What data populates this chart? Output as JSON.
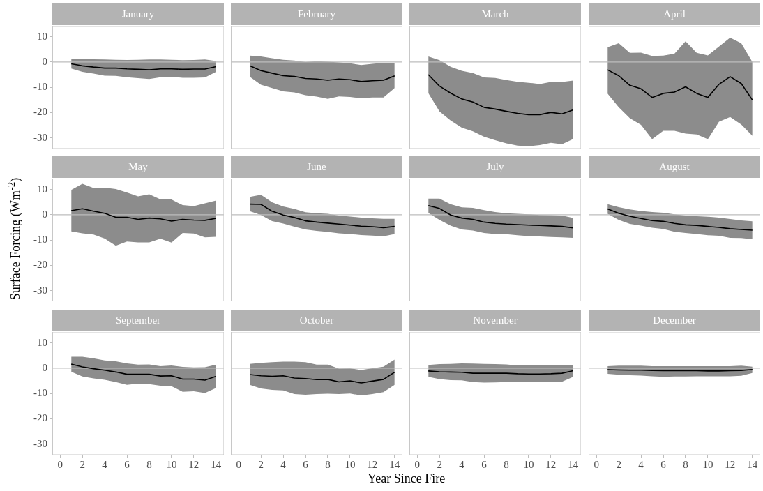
{
  "chart_data": [
    {
      "type": "line",
      "title": "January",
      "x": [
        1,
        2,
        3,
        4,
        5,
        6,
        7,
        8,
        9,
        10,
        11,
        12,
        13,
        14
      ],
      "xlim": [
        -0.7,
        14.7
      ],
      "ylim": [
        -34.2,
        14.3
      ],
      "xticks": [
        0,
        2,
        4,
        6,
        8,
        10,
        12,
        14
      ],
      "yticks": [
        -30,
        -20,
        -10,
        0,
        10
      ],
      "tick_labels": "y",
      "ref_lines": [
        {
          "axis": "y",
          "value": 0,
          "color": "#bdbdbd"
        }
      ],
      "series": [
        {
          "color": "#000000",
          "values": [
            -0.7,
            -1.5,
            -2,
            -2.4,
            -2.4,
            -2.7,
            -2.9,
            -3.1,
            -2.7,
            -2.7,
            -2.9,
            -2.8,
            -2.8,
            -1.8
          ],
          "lower": [
            -2.6,
            -3.9,
            -4.6,
            -5.4,
            -5.5,
            -6,
            -6.4,
            -6.7,
            -6,
            -5.9,
            -6.2,
            -6.2,
            -6.1,
            -3.9
          ],
          "upper": [
            1.2,
            1.2,
            1.1,
            1,
            0.9,
            0.8,
            0.9,
            1,
            1,
            0.9,
            0.7,
            0.8,
            1,
            0.4
          ]
        }
      ]
    },
    {
      "type": "line",
      "title": "February",
      "x": [
        1,
        2,
        3,
        4,
        5,
        6,
        7,
        8,
        9,
        10,
        11,
        12,
        13,
        14
      ],
      "xlim": [
        -0.7,
        14.7
      ],
      "ylim": [
        -34.2,
        14.3
      ],
      "xticks": [
        0,
        2,
        4,
        6,
        8,
        10,
        12,
        14
      ],
      "yticks": [
        -30,
        -20,
        -10,
        0,
        10
      ],
      "tick_labels": false,
      "ref_lines": [
        {
          "axis": "y",
          "value": 0,
          "color": "#bdbdbd"
        }
      ],
      "series": [
        {
          "color": "#000000",
          "values": [
            -1.5,
            -3.4,
            -4.4,
            -5.4,
            -5.7,
            -6.5,
            -6.7,
            -7.2,
            -6.7,
            -7,
            -7.7,
            -7.4,
            -7.2,
            -5.5
          ],
          "lower": [
            -5.8,
            -9,
            -10.3,
            -11.6,
            -12,
            -13.1,
            -13.7,
            -14.6,
            -13.6,
            -13.8,
            -14.3,
            -14,
            -14,
            -10.3
          ],
          "upper": [
            2.5,
            2.2,
            1.5,
            0.9,
            0.6,
            0,
            0.3,
            0.1,
            -0.2,
            -0.5,
            -1.2,
            -0.7,
            -0.3,
            -0.5
          ]
        }
      ]
    },
    {
      "type": "line",
      "title": "March",
      "x": [
        1,
        2,
        3,
        4,
        5,
        6,
        7,
        8,
        9,
        10,
        11,
        12,
        13,
        14
      ],
      "xlim": [
        -0.7,
        14.7
      ],
      "ylim": [
        -34.2,
        14.3
      ],
      "xticks": [
        0,
        2,
        4,
        6,
        8,
        10,
        12,
        14
      ],
      "yticks": [
        -30,
        -20,
        -10,
        0,
        10
      ],
      "tick_labels": false,
      "ref_lines": [
        {
          "axis": "y",
          "value": 0,
          "color": "#bdbdbd"
        }
      ],
      "series": [
        {
          "color": "#000000",
          "values": [
            -5,
            -9.5,
            -12.3,
            -14.6,
            -15.8,
            -17.9,
            -18.6,
            -19.5,
            -20.3,
            -20.8,
            -20.8,
            -19.9,
            -20.5,
            -18.9
          ],
          "lower": [
            -12.3,
            -19.5,
            -23.1,
            -25.9,
            -27.4,
            -29.5,
            -30.9,
            -32.1,
            -33,
            -33.3,
            -32.8,
            -31.9,
            -32.5,
            -30.4
          ],
          "upper": [
            2.2,
            0.7,
            -1.9,
            -3.5,
            -4.4,
            -6.1,
            -6.3,
            -7.1,
            -7.8,
            -8.2,
            -8.7,
            -7.9,
            -7.9,
            -7.3
          ]
        }
      ]
    },
    {
      "type": "line",
      "title": "April",
      "x": [
        1,
        2,
        3,
        4,
        5,
        6,
        7,
        8,
        9,
        10,
        11,
        12,
        13,
        14
      ],
      "xlim": [
        -0.7,
        14.7
      ],
      "ylim": [
        -34.2,
        14.3
      ],
      "xticks": [
        0,
        2,
        4,
        6,
        8,
        10,
        12,
        14
      ],
      "yticks": [
        -30,
        -20,
        -10,
        0,
        10
      ],
      "tick_labels": false,
      "ref_lines": [
        {
          "axis": "y",
          "value": 0,
          "color": "#bdbdbd"
        }
      ],
      "series": [
        {
          "color": "#000000",
          "values": [
            -3.1,
            -5.4,
            -9.2,
            -10.6,
            -14,
            -12.4,
            -11.9,
            -9.8,
            -12.4,
            -14,
            -8.8,
            -5.8,
            -8.5,
            -15
          ],
          "lower": [
            -12.5,
            -17.9,
            -22.2,
            -24.8,
            -30.5,
            -27.2,
            -27.2,
            -28.3,
            -28.6,
            -30.5,
            -23.6,
            -21.7,
            -24.7,
            -29.2
          ],
          "upper": [
            5.8,
            7.4,
            3.6,
            3.7,
            2.4,
            2.5,
            3.3,
            8.2,
            3.6,
            2.6,
            6.1,
            9.6,
            7.4,
            0
          ]
        }
      ]
    },
    {
      "type": "line",
      "title": "May",
      "ylabel": "Surface Forcing (Wm$^{-2}$)",
      "x": [
        1,
        2,
        3,
        4,
        5,
        6,
        7,
        8,
        9,
        10,
        11,
        12,
        13,
        14
      ],
      "xlim": [
        -0.7,
        14.7
      ],
      "ylim": [
        -34.2,
        14.3
      ],
      "xticks": [
        0,
        2,
        4,
        6,
        8,
        10,
        12,
        14
      ],
      "yticks": [
        -30,
        -20,
        -10,
        0,
        10
      ],
      "tick_labels": "y",
      "ref_lines": [
        {
          "axis": "y",
          "value": 0,
          "color": "#bdbdbd"
        }
      ],
      "series": [
        {
          "color": "#000000",
          "values": [
            1.6,
            2.4,
            1.4,
            0.6,
            -1,
            -1,
            -1.8,
            -1.3,
            -1.6,
            -2.5,
            -1.8,
            -2.1,
            -2.2,
            -1.4
          ],
          "lower": [
            -6.6,
            -7.3,
            -7.8,
            -9.4,
            -12.2,
            -10.6,
            -10.9,
            -10.9,
            -9.5,
            -11,
            -7.2,
            -7.4,
            -8.9,
            -8.7
          ],
          "upper": [
            9.8,
            12.2,
            10.6,
            10.7,
            10.2,
            8.8,
            7.3,
            8.1,
            6.1,
            6,
            3.8,
            3.4,
            4.5,
            5.6
          ]
        }
      ]
    },
    {
      "type": "line",
      "title": "June",
      "x": [
        1,
        2,
        3,
        4,
        5,
        6,
        7,
        8,
        9,
        10,
        11,
        12,
        13,
        14
      ],
      "xlim": [
        -0.7,
        14.7
      ],
      "ylim": [
        -34.2,
        14.3
      ],
      "xticks": [
        0,
        2,
        4,
        6,
        8,
        10,
        12,
        14
      ],
      "yticks": [
        -30,
        -20,
        -10,
        0,
        10
      ],
      "tick_labels": false,
      "ref_lines": [
        {
          "axis": "y",
          "value": 0,
          "color": "#bdbdbd"
        }
      ],
      "series": [
        {
          "color": "#000000",
          "values": [
            4.2,
            4.1,
            1.4,
            -0.1,
            -1.1,
            -2.4,
            -2.9,
            -3.3,
            -3.7,
            -4.1,
            -4.5,
            -4.7,
            -5.1,
            -4.6
          ],
          "lower": [
            1.4,
            -0.1,
            -2.5,
            -3.5,
            -4.7,
            -5.8,
            -6.4,
            -6.8,
            -7.3,
            -7.6,
            -8,
            -8.2,
            -8.5,
            -7.6
          ],
          "upper": [
            7.1,
            7.9,
            4.9,
            3.3,
            2.3,
            1,
            0.6,
            0.4,
            -0.3,
            -0.7,
            -1.1,
            -1.4,
            -1.6,
            -1.6
          ]
        }
      ]
    },
    {
      "type": "line",
      "title": "July",
      "x": [
        1,
        2,
        3,
        4,
        5,
        6,
        7,
        8,
        9,
        10,
        11,
        12,
        13,
        14
      ],
      "xlim": [
        -0.7,
        14.7
      ],
      "ylim": [
        -34.2,
        14.3
      ],
      "xticks": [
        0,
        2,
        4,
        6,
        8,
        10,
        12,
        14
      ],
      "yticks": [
        -30,
        -20,
        -10,
        0,
        10
      ],
      "tick_labels": false,
      "ref_lines": [
        {
          "axis": "y",
          "value": 0,
          "color": "#bdbdbd"
        }
      ],
      "series": [
        {
          "color": "#000000",
          "values": [
            3.6,
            2.5,
            -0.1,
            -1.3,
            -1.8,
            -2.9,
            -3.4,
            -3.7,
            -3.9,
            -4.1,
            -4.2,
            -4.4,
            -4.6,
            -5.2
          ],
          "lower": [
            0.7,
            -2,
            -4.3,
            -5.8,
            -6.2,
            -7.2,
            -7.6,
            -7.7,
            -8.1,
            -8.4,
            -8.6,
            -8.8,
            -8.9,
            -9.1
          ],
          "upper": [
            6.4,
            6.4,
            4.2,
            2.9,
            2.7,
            1.8,
            1.1,
            0.6,
            0.4,
            0.2,
            -0.1,
            -0.2,
            -0.3,
            -1.3
          ]
        }
      ]
    },
    {
      "type": "line",
      "title": "August",
      "x": [
        1,
        2,
        3,
        4,
        5,
        6,
        7,
        8,
        9,
        10,
        11,
        12,
        13,
        14
      ],
      "xlim": [
        -0.7,
        14.7
      ],
      "ylim": [
        -34.2,
        14.3
      ],
      "xticks": [
        0,
        2,
        4,
        6,
        8,
        10,
        12,
        14
      ],
      "yticks": [
        -30,
        -20,
        -10,
        0,
        10
      ],
      "tick_labels": false,
      "ref_lines": [
        {
          "axis": "y",
          "value": 0,
          "color": "#bdbdbd"
        }
      ],
      "series": [
        {
          "color": "#000000",
          "values": [
            2.3,
            0.6,
            -0.6,
            -1.5,
            -2.3,
            -2.6,
            -3.4,
            -4,
            -4.2,
            -4.6,
            -5,
            -5.5,
            -5.8,
            -6.1
          ],
          "lower": [
            0.4,
            -2,
            -3.6,
            -4.3,
            -5.1,
            -5.6,
            -6.7,
            -7.2,
            -7.6,
            -8.1,
            -8.3,
            -9.1,
            -9.2,
            -9.7
          ],
          "upper": [
            4.2,
            3,
            2.1,
            1.5,
            1.1,
            0.8,
            0.2,
            -0.3,
            -0.6,
            -0.8,
            -1.1,
            -1.7,
            -2.2,
            -2.6
          ]
        }
      ]
    },
    {
      "type": "line",
      "title": "September",
      "x": [
        1,
        2,
        3,
        4,
        5,
        6,
        7,
        8,
        9,
        10,
        11,
        12,
        13,
        14
      ],
      "xlim": [
        -0.7,
        14.7
      ],
      "ylim": [
        -34.2,
        14.3
      ],
      "xticks": [
        0,
        2,
        4,
        6,
        8,
        10,
        12,
        14
      ],
      "yticks": [
        -30,
        -20,
        -10,
        0,
        10
      ],
      "ref_lines": [
        {
          "axis": "y",
          "value": 0,
          "color": "#bdbdbd"
        }
      ],
      "series": [
        {
          "color": "#000000",
          "values": [
            1.6,
            0.5,
            -0.2,
            -0.8,
            -1.5,
            -2.4,
            -2.4,
            -2.4,
            -3.1,
            -3,
            -4.3,
            -4.3,
            -4.7,
            -3.2
          ],
          "lower": [
            -1.4,
            -3.3,
            -4,
            -4.6,
            -5.5,
            -6.6,
            -6.1,
            -6.3,
            -6.9,
            -7.1,
            -9.3,
            -9.1,
            -9.8,
            -7.8
          ],
          "upper": [
            4.5,
            4.5,
            3.9,
            3.1,
            2.7,
            1.9,
            1.4,
            1.5,
            0.8,
            1.1,
            0.5,
            0.3,
            0.4,
            1.4
          ]
        }
      ]
    },
    {
      "type": "line",
      "title": "October",
      "xlabel": "Year Since Fire",
      "x": [
        1,
        2,
        3,
        4,
        5,
        6,
        7,
        8,
        9,
        10,
        11,
        12,
        13,
        14
      ],
      "xlim": [
        -0.7,
        14.7
      ],
      "ylim": [
        -34.2,
        14.3
      ],
      "xticks": [
        0,
        2,
        4,
        6,
        8,
        10,
        12,
        14
      ],
      "yticks": [
        -30,
        -20,
        -10,
        0,
        10
      ],
      "tick_labels": "x",
      "ref_lines": [
        {
          "axis": "y",
          "value": 0,
          "color": "#bdbdbd"
        }
      ],
      "series": [
        {
          "color": "#000000",
          "values": [
            -2.5,
            -3,
            -3.2,
            -3,
            -3.9,
            -4.1,
            -4.5,
            -4.4,
            -5.4,
            -5,
            -5.8,
            -5.1,
            -4.4,
            -1.6
          ],
          "lower": [
            -6.6,
            -8,
            -8.6,
            -8.8,
            -10.2,
            -10.5,
            -10.2,
            -10.1,
            -10.2,
            -10,
            -10.8,
            -10.2,
            -9.5,
            -6.6
          ],
          "upper": [
            1.7,
            2.1,
            2.4,
            2.6,
            2.6,
            2.4,
            1.4,
            1.4,
            -0.2,
            -0.1,
            -0.7,
            0,
            0.6,
            3.4
          ]
        }
      ]
    },
    {
      "type": "line",
      "title": "November",
      "x": [
        1,
        2,
        3,
        4,
        5,
        6,
        7,
        8,
        9,
        10,
        11,
        12,
        13,
        14
      ],
      "xlim": [
        -0.7,
        14.7
      ],
      "ylim": [
        -34.2,
        14.3
      ],
      "xticks": [
        0,
        2,
        4,
        6,
        8,
        10,
        12,
        14
      ],
      "yticks": [
        -30,
        -20,
        -10,
        0,
        10
      ],
      "tick_labels": "x",
      "ref_lines": [
        {
          "axis": "y",
          "value": 0,
          "color": "#bdbdbd"
        }
      ],
      "series": [
        {
          "color": "#000000",
          "values": [
            -1.1,
            -1.4,
            -1.5,
            -1.6,
            -2,
            -2,
            -2,
            -2,
            -2.2,
            -2.3,
            -2.3,
            -2.2,
            -2,
            -1
          ],
          "lower": [
            -3.4,
            -4.3,
            -4.7,
            -4.8,
            -5.5,
            -5.7,
            -5.6,
            -5.5,
            -5.3,
            -5.5,
            -5.5,
            -5.4,
            -5.3,
            -3.4
          ],
          "upper": [
            1.3,
            1.6,
            1.7,
            1.9,
            1.8,
            1.7,
            1.6,
            1.5,
            1.1,
            1.1,
            1.2,
            1.3,
            1.3,
            1.1
          ]
        }
      ]
    },
    {
      "type": "line",
      "title": "December",
      "x": [
        1,
        2,
        3,
        4,
        5,
        6,
        7,
        8,
        9,
        10,
        11,
        12,
        13,
        14
      ],
      "xlim": [
        -0.7,
        14.7
      ],
      "ylim": [
        -34.2,
        14.3
      ],
      "xticks": [
        0,
        2,
        4,
        6,
        8,
        10,
        12,
        14
      ],
      "yticks": [
        -30,
        -20,
        -10,
        0,
        10
      ],
      "tick_labels": "x",
      "ref_lines": [
        {
          "axis": "y",
          "value": 0,
          "color": "#bdbdbd"
        }
      ],
      "series": [
        {
          "color": "#000000",
          "values": [
            -0.6,
            -0.7,
            -0.8,
            -0.8,
            -0.9,
            -1,
            -1,
            -1,
            -1,
            -1.1,
            -1.1,
            -1,
            -0.9,
            -0.5
          ],
          "lower": [
            -2.2,
            -2.6,
            -2.8,
            -2.9,
            -3.2,
            -3.4,
            -3.3,
            -3.3,
            -3.2,
            -3.2,
            -3.2,
            -3.2,
            -3,
            -1.9
          ],
          "upper": [
            0.8,
            1,
            1,
            1,
            0.8,
            0.8,
            0.8,
            0.8,
            0.8,
            0.8,
            0.8,
            0.8,
            1,
            0.6
          ]
        }
      ]
    }
  ]
}
